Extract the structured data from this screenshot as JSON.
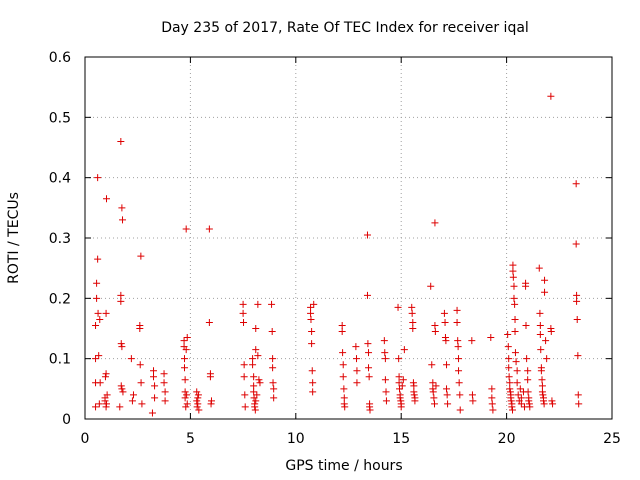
{
  "chart_data": {
    "type": "scatter",
    "title": "Day 235 of 2017, Rate Of TEC Index for receiver iqal",
    "xlabel": "GPS time / hours",
    "ylabel": "ROTI / TECUs",
    "xlim": [
      0,
      25
    ],
    "ylim": [
      0,
      0.6
    ],
    "xticks": [
      0,
      5,
      10,
      15,
      20,
      25
    ],
    "xtick_labels": [
      "0",
      "5",
      "10",
      "15",
      "20",
      "25"
    ],
    "yticks": [
      0,
      0.1,
      0.2,
      0.3,
      0.4,
      0.5,
      0.6
    ],
    "ytick_labels": [
      "0",
      "0.1",
      "0.2",
      "0.3",
      "0.4",
      "0.5",
      "0.6"
    ],
    "grid": true,
    "marker": "+",
    "color": "#dd0000",
    "points": [
      [
        0.5,
        0.02
      ],
      [
        0.5,
        0.06
      ],
      [
        0.5,
        0.1
      ],
      [
        0.5,
        0.155
      ],
      [
        0.55,
        0.2
      ],
      [
        0.55,
        0.225
      ],
      [
        0.6,
        0.265
      ],
      [
        0.6,
        0.4
      ],
      [
        0.62,
        0.175
      ],
      [
        0.65,
        0.105
      ],
      [
        0.68,
        0.025
      ],
      [
        0.7,
        0.165
      ],
      [
        0.72,
        0.06
      ],
      [
        0.95,
        0.03
      ],
      [
        0.95,
        0.035
      ],
      [
        0.97,
        0.07
      ],
      [
        1.0,
        0.075
      ],
      [
        1.0,
        0.02
      ],
      [
        1.02,
        0.025
      ],
      [
        1.0,
        0.175
      ],
      [
        1.02,
        0.365
      ],
      [
        1.05,
        0.04
      ],
      [
        1.65,
        0.02
      ],
      [
        1.7,
        0.205
      ],
      [
        1.7,
        0.195
      ],
      [
        1.72,
        0.125
      ],
      [
        1.75,
        0.12
      ],
      [
        1.75,
        0.35
      ],
      [
        1.78,
        0.33
      ],
      [
        1.7,
        0.46
      ],
      [
        1.72,
        0.055
      ],
      [
        1.75,
        0.05
      ],
      [
        1.8,
        0.045
      ],
      [
        2.2,
        0.1
      ],
      [
        2.25,
        0.03
      ],
      [
        2.3,
        0.04
      ],
      [
        2.6,
        0.155
      ],
      [
        2.6,
        0.15
      ],
      [
        2.65,
        0.27
      ],
      [
        2.62,
        0.09
      ],
      [
        2.66,
        0.06
      ],
      [
        2.7,
        0.025
      ],
      [
        3.2,
        0.01
      ],
      [
        3.25,
        0.08
      ],
      [
        3.25,
        0.07
      ],
      [
        3.3,
        0.035
      ],
      [
        3.3,
        0.055
      ],
      [
        3.75,
        0.075
      ],
      [
        3.75,
        0.06
      ],
      [
        3.8,
        0.03
      ],
      [
        3.8,
        0.045
      ],
      [
        4.7,
        0.13
      ],
      [
        4.7,
        0.12
      ],
      [
        4.72,
        0.1
      ],
      [
        4.72,
        0.085
      ],
      [
        4.75,
        0.065
      ],
      [
        4.75,
        0.045
      ],
      [
        4.75,
        0.035
      ],
      [
        4.78,
        0.02
      ],
      [
        4.8,
        0.315
      ],
      [
        4.8,
        0.115
      ],
      [
        4.82,
        0.04
      ],
      [
        4.85,
        0.025
      ],
      [
        4.85,
        0.135
      ],
      [
        5.3,
        0.045
      ],
      [
        5.3,
        0.03
      ],
      [
        5.32,
        0.02
      ],
      [
        5.35,
        0.035
      ],
      [
        5.35,
        0.025
      ],
      [
        5.38,
        0.04
      ],
      [
        5.4,
        0.015
      ],
      [
        5.9,
        0.315
      ],
      [
        5.9,
        0.16
      ],
      [
        5.95,
        0.075
      ],
      [
        5.95,
        0.07
      ],
      [
        5.98,
        0.025
      ],
      [
        6.0,
        0.03
      ],
      [
        7.5,
        0.19
      ],
      [
        7.5,
        0.175
      ],
      [
        7.52,
        0.16
      ],
      [
        7.55,
        0.09
      ],
      [
        7.55,
        0.07
      ],
      [
        7.58,
        0.04
      ],
      [
        7.6,
        0.02
      ],
      [
        7.95,
        0.1
      ],
      [
        7.95,
        0.09
      ],
      [
        8.0,
        0.07
      ],
      [
        8.0,
        0.055
      ],
      [
        8.0,
        0.045
      ],
      [
        8.02,
        0.035
      ],
      [
        8.05,
        0.025
      ],
      [
        8.05,
        0.02
      ],
      [
        8.08,
        0.015
      ],
      [
        8.1,
        0.115
      ],
      [
        8.1,
        0.15
      ],
      [
        8.1,
        0.03
      ],
      [
        8.15,
        0.04
      ],
      [
        8.2,
        0.19
      ],
      [
        8.25,
        0.065
      ],
      [
        8.3,
        0.06
      ],
      [
        8.2,
        0.105
      ],
      [
        8.85,
        0.19
      ],
      [
        8.88,
        0.145
      ],
      [
        8.9,
        0.1
      ],
      [
        8.9,
        0.085
      ],
      [
        8.92,
        0.06
      ],
      [
        8.95,
        0.035
      ],
      [
        8.95,
        0.05
      ],
      [
        10.7,
        0.185
      ],
      [
        10.7,
        0.175
      ],
      [
        10.72,
        0.165
      ],
      [
        10.75,
        0.145
      ],
      [
        10.75,
        0.125
      ],
      [
        10.78,
        0.08
      ],
      [
        10.8,
        0.06
      ],
      [
        10.8,
        0.045
      ],
      [
        10.85,
        0.19
      ],
      [
        12.2,
        0.155
      ],
      [
        12.2,
        0.145
      ],
      [
        12.22,
        0.11
      ],
      [
        12.25,
        0.09
      ],
      [
        12.25,
        0.07
      ],
      [
        12.28,
        0.05
      ],
      [
        12.3,
        0.035
      ],
      [
        12.3,
        0.025
      ],
      [
        12.32,
        0.02
      ],
      [
        12.85,
        0.12
      ],
      [
        12.88,
        0.1
      ],
      [
        12.9,
        0.08
      ],
      [
        12.9,
        0.06
      ],
      [
        13.4,
        0.305
      ],
      [
        13.4,
        0.205
      ],
      [
        13.42,
        0.125
      ],
      [
        13.45,
        0.11
      ],
      [
        13.45,
        0.085
      ],
      [
        13.48,
        0.07
      ],
      [
        13.5,
        0.02
      ],
      [
        13.5,
        0.025
      ],
      [
        13.52,
        0.015
      ],
      [
        14.2,
        0.13
      ],
      [
        14.22,
        0.11
      ],
      [
        14.25,
        0.1
      ],
      [
        14.25,
        0.065
      ],
      [
        14.28,
        0.045
      ],
      [
        14.3,
        0.03
      ],
      [
        14.85,
        0.185
      ],
      [
        14.88,
        0.1
      ],
      [
        14.9,
        0.07
      ],
      [
        14.9,
        0.06
      ],
      [
        14.92,
        0.05
      ],
      [
        14.95,
        0.04
      ],
      [
        14.95,
        0.035
      ],
      [
        14.98,
        0.03
      ],
      [
        15.0,
        0.025
      ],
      [
        15.0,
        0.02
      ],
      [
        15.05,
        0.055
      ],
      [
        15.1,
        0.065
      ],
      [
        15.15,
        0.115
      ],
      [
        15.5,
        0.185
      ],
      [
        15.52,
        0.175
      ],
      [
        15.55,
        0.16
      ],
      [
        15.55,
        0.15
      ],
      [
        15.58,
        0.06
      ],
      [
        15.6,
        0.055
      ],
      [
        15.6,
        0.045
      ],
      [
        15.62,
        0.04
      ],
      [
        15.65,
        0.035
      ],
      [
        15.65,
        0.03
      ],
      [
        16.4,
        0.22
      ],
      [
        16.45,
        0.09
      ],
      [
        16.5,
        0.06
      ],
      [
        16.5,
        0.05
      ],
      [
        16.52,
        0.045
      ],
      [
        16.55,
        0.035
      ],
      [
        16.58,
        0.025
      ],
      [
        16.6,
        0.325
      ],
      [
        16.6,
        0.155
      ],
      [
        16.62,
        0.145
      ],
      [
        16.65,
        0.055
      ],
      [
        17.05,
        0.175
      ],
      [
        17.08,
        0.16
      ],
      [
        17.1,
        0.135
      ],
      [
        17.12,
        0.13
      ],
      [
        17.15,
        0.09
      ],
      [
        17.15,
        0.05
      ],
      [
        17.18,
        0.04
      ],
      [
        17.2,
        0.025
      ],
      [
        17.65,
        0.18
      ],
      [
        17.65,
        0.16
      ],
      [
        17.68,
        0.13
      ],
      [
        17.7,
        0.12
      ],
      [
        17.72,
        0.1
      ],
      [
        17.72,
        0.08
      ],
      [
        17.75,
        0.06
      ],
      [
        17.78,
        0.04
      ],
      [
        17.8,
        0.015
      ],
      [
        18.35,
        0.13
      ],
      [
        18.38,
        0.04
      ],
      [
        18.4,
        0.03
      ],
      [
        19.25,
        0.135
      ],
      [
        19.3,
        0.05
      ],
      [
        19.3,
        0.035
      ],
      [
        19.32,
        0.025
      ],
      [
        19.35,
        0.015
      ],
      [
        20.05,
        0.14
      ],
      [
        20.08,
        0.12
      ],
      [
        20.1,
        0.1
      ],
      [
        20.1,
        0.085
      ],
      [
        20.12,
        0.07
      ],
      [
        20.15,
        0.06
      ],
      [
        20.15,
        0.05
      ],
      [
        20.18,
        0.045
      ],
      [
        20.2,
        0.04
      ],
      [
        20.2,
        0.035
      ],
      [
        20.22,
        0.03
      ],
      [
        20.25,
        0.025
      ],
      [
        20.25,
        0.02
      ],
      [
        20.28,
        0.015
      ],
      [
        20.3,
        0.255
      ],
      [
        20.3,
        0.245
      ],
      [
        20.32,
        0.235
      ],
      [
        20.35,
        0.22
      ],
      [
        20.35,
        0.2
      ],
      [
        20.38,
        0.19
      ],
      [
        20.4,
        0.165
      ],
      [
        20.4,
        0.145
      ],
      [
        20.42,
        0.11
      ],
      [
        20.45,
        0.095
      ],
      [
        20.5,
        0.08
      ],
      [
        20.5,
        0.06
      ],
      [
        20.55,
        0.04
      ],
      [
        20.6,
        0.03
      ],
      [
        20.65,
        0.05
      ],
      [
        20.7,
        0.025
      ],
      [
        20.7,
        0.035
      ],
      [
        20.8,
        0.045
      ],
      [
        20.85,
        0.02
      ],
      [
        20.9,
        0.225
      ],
      [
        20.9,
        0.22
      ],
      [
        20.92,
        0.155
      ],
      [
        20.95,
        0.1
      ],
      [
        21.0,
        0.08
      ],
      [
        21.0,
        0.065
      ],
      [
        21.02,
        0.045
      ],
      [
        21.05,
        0.03
      ],
      [
        21.05,
        0.035
      ],
      [
        21.08,
        0.025
      ],
      [
        21.1,
        0.02
      ],
      [
        21.55,
        0.25
      ],
      [
        21.58,
        0.175
      ],
      [
        21.6,
        0.155
      ],
      [
        21.6,
        0.14
      ],
      [
        21.62,
        0.115
      ],
      [
        21.65,
        0.085
      ],
      [
        21.65,
        0.08
      ],
      [
        21.68,
        0.065
      ],
      [
        21.7,
        0.055
      ],
      [
        21.7,
        0.045
      ],
      [
        21.72,
        0.04
      ],
      [
        21.75,
        0.035
      ],
      [
        21.75,
        0.03
      ],
      [
        21.78,
        0.025
      ],
      [
        21.8,
        0.23
      ],
      [
        21.8,
        0.21
      ],
      [
        21.85,
        0.13
      ],
      [
        21.9,
        0.1
      ],
      [
        22.1,
        0.535
      ],
      [
        22.1,
        0.15
      ],
      [
        22.12,
        0.145
      ],
      [
        22.15,
        0.03
      ],
      [
        22.18,
        0.025
      ],
      [
        23.3,
        0.39
      ],
      [
        23.3,
        0.29
      ],
      [
        23.32,
        0.205
      ],
      [
        23.32,
        0.195
      ],
      [
        23.35,
        0.165
      ],
      [
        23.38,
        0.105
      ],
      [
        23.4,
        0.04
      ],
      [
        23.42,
        0.025
      ]
    ]
  }
}
